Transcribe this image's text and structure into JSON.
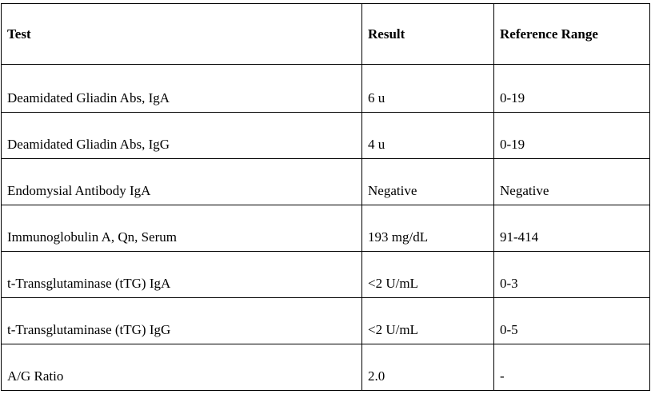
{
  "table": {
    "headers": [
      "Test",
      "Result",
      "Reference Range"
    ],
    "rows": [
      {
        "test": "Deamidated Gliadin Abs, IgA",
        "result": "6 u",
        "range": "0-19"
      },
      {
        "test": "Deamidated Gliadin Abs, IgG",
        "result": "4 u",
        "range": "0-19"
      },
      {
        "test": "Endomysial Antibody IgA",
        "result": "Negative",
        "range": "Negative"
      },
      {
        "test": "Immunoglobulin A, Qn, Serum",
        "result": "193 mg/dL",
        "range": "91-414"
      },
      {
        "test": "t-Transglutaminase (tTG) IgA",
        "result": "<2 U/mL",
        "range": "0-3"
      },
      {
        "test": "t-Transglutaminase (tTG) IgG",
        "result": "<2 U/mL",
        "range": "0-5"
      },
      {
        "test": "A/G Ratio",
        "result": "2.0",
        "range": "-"
      }
    ]
  }
}
